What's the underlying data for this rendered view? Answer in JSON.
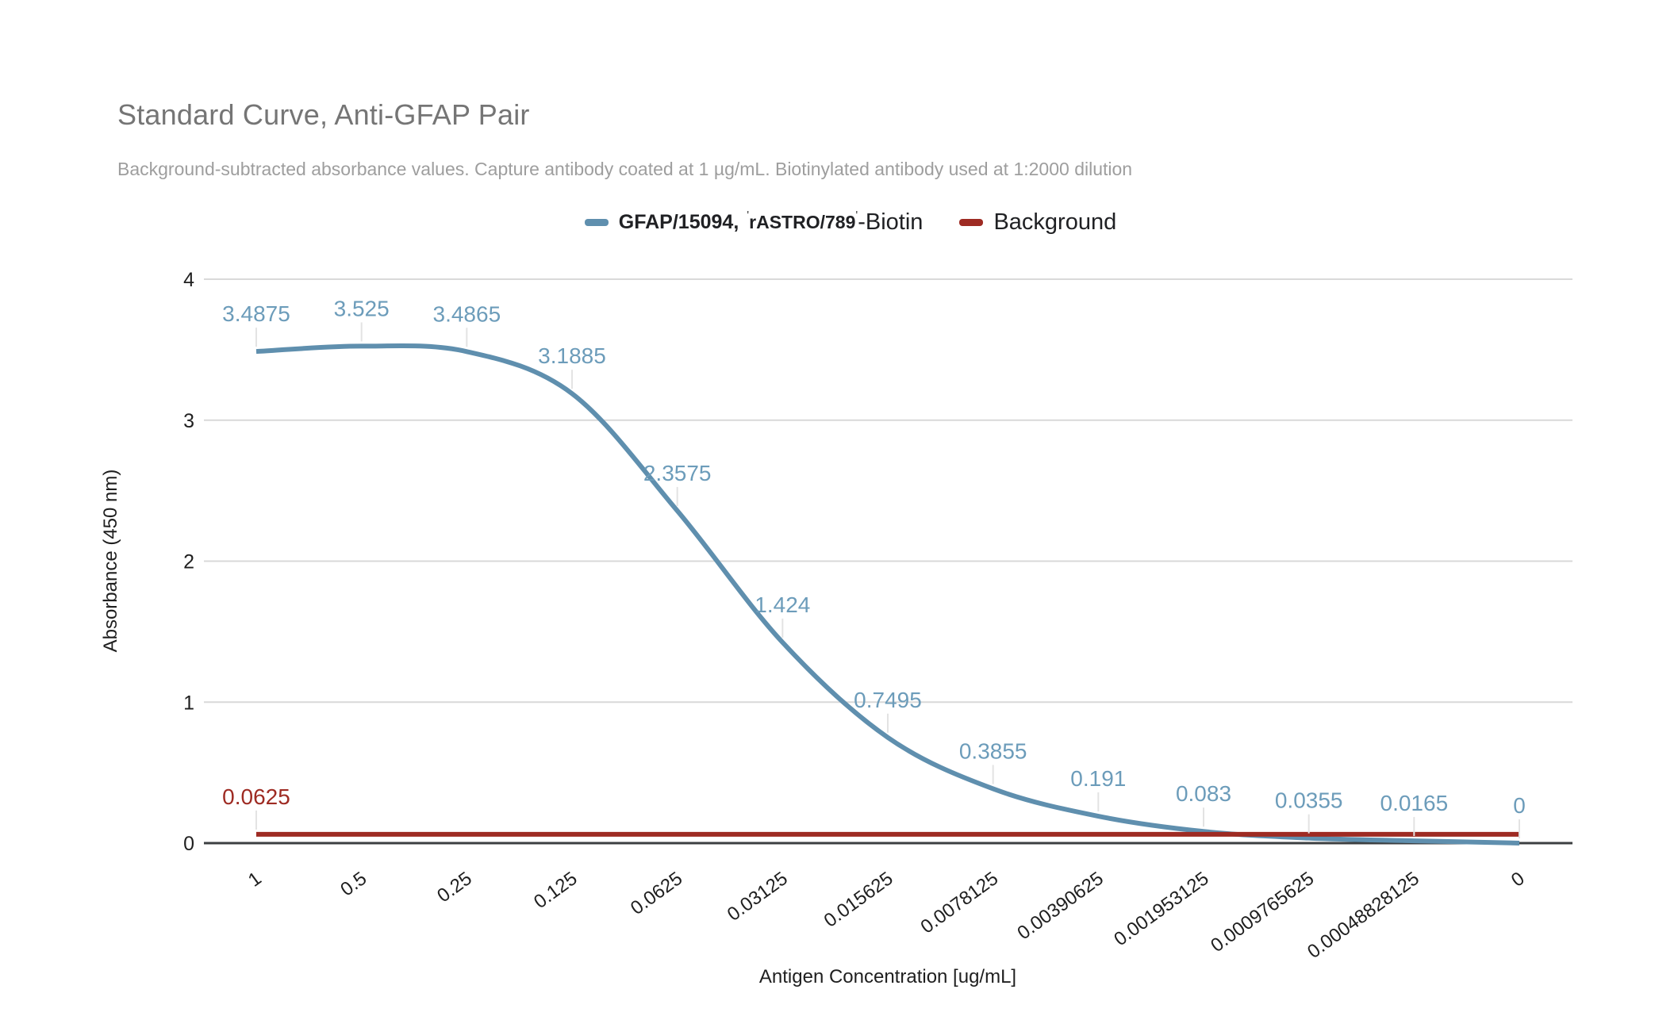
{
  "colors": {
    "background": "#ffffff",
    "title_gray": "#757575",
    "subtitle_gray": "#9e9e9e",
    "axis_text": "#1f1f1f",
    "gridline": "#d9d9d9",
    "axis_baseline": "#3c3f41",
    "leader_line": "#e3e3e3",
    "series_blue": "#5f8fae",
    "series_red": "#9e2b23"
  },
  "legend": {
    "series1": {
      "swatch_color": "#5f8fae",
      "name_part1": "GFAP/15094",
      "separator": ",",
      "quote_open": "'",
      "name_part2": "rASTRO/789",
      "quote_close": "'",
      "suffix": "-Biotin"
    },
    "series2": {
      "swatch_color": "#9e2b23",
      "label": "Background"
    }
  },
  "chart_data": {
    "type": "line",
    "title": "Standard Curve, Anti-GFAP Pair",
    "subtitle": "Background-subtracted absorbance values. Capture antibody coated at 1 µg/mL. Biotinylated antibody used at 1:2000 dilution",
    "xlabel": "Antigen Concentration [ug/mL]",
    "ylabel": "Absorbance (450 nm)",
    "ylim": [
      0,
      4
    ],
    "y_ticks": [
      "4",
      "3",
      "2",
      "1",
      "0"
    ],
    "grid": true,
    "legend_position": "top",
    "x_label_rotation_deg": -36,
    "x_categories": [
      "1",
      "0.5",
      "0.25",
      "0.125",
      "0.0625",
      "0.03125",
      "0.015625",
      "0.0078125",
      "0.00390625",
      "0.001953125",
      "0.0009765625",
      "0.00048828125",
      "0"
    ],
    "series": [
      {
        "name": "GFAP/15094, 'rASTRO/789'-Biotin",
        "color": "#5f8fae",
        "label_color": "#6c9cba",
        "smooth": true,
        "values": [
          3.4875,
          3.525,
          3.4865,
          3.1885,
          2.3575,
          1.424,
          0.7495,
          0.3855,
          0.191,
          0.083,
          0.0355,
          0.0165,
          0
        ],
        "point_labels": [
          "3.4875",
          "3.525",
          "3.4865",
          "3.1885",
          "2.3575",
          "1.424",
          "0.7495",
          "0.3855",
          "0.191",
          "0.083",
          "0.0355",
          "0.0165",
          "0"
        ]
      },
      {
        "name": "Background",
        "color": "#9e2b23",
        "label_color": "#9e2b23",
        "smooth": false,
        "values": [
          0.0625,
          0.0625,
          0.0625,
          0.0625,
          0.0625,
          0.0625,
          0.0625,
          0.0625,
          0.0625,
          0.0625,
          0.0625,
          0.0625,
          0.0625
        ],
        "point_labels": [
          "0.0625",
          "",
          "",
          "",
          "",
          "",
          "",
          "",
          "",
          "",
          "",
          "",
          ""
        ]
      }
    ]
  }
}
